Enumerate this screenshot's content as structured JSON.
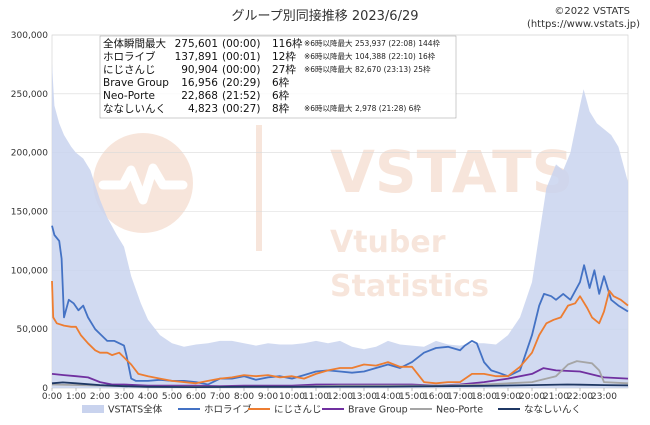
{
  "header": {
    "title": "グループ別同接推移 2023/6/29",
    "copyright": "©2022 VSTATS",
    "url": "(https://www.vstats.jp)"
  },
  "watermark": {
    "brand": "VSTATS",
    "line1": "Vtuber",
    "line2": "Statistics"
  },
  "stats_box": [
    {
      "label": "全体瞬間最大",
      "value": "275,601",
      "time": "(00:00)",
      "slots": "116枠",
      "note": "※6時以降最大 253,937 (22:08) 144枠"
    },
    {
      "label": "ホロライブ",
      "value": "137,891",
      "time": "(00:01)",
      "slots": "12枠",
      "note": "※6時以降最大 104,388 (22:10) 16枠"
    },
    {
      "label": "にじさんじ",
      "value": "90,904",
      "time": "(00:00)",
      "slots": "27枠",
      "note": "※6時以降最大 82,670 (23:13) 25枠"
    },
    {
      "label": "Brave Group",
      "value": "16,956",
      "time": "(20:29)",
      "slots": "6枠",
      "note": ""
    },
    {
      "label": "Neo-Porte",
      "value": "22,868",
      "time": "(21:52)",
      "slots": "6枠",
      "note": ""
    },
    {
      "label": "ななしいんく",
      "value": "4,823",
      "time": "(00:27)",
      "slots": "8枠",
      "note": "※6時以降最大 2,978 (21:28) 6枠"
    }
  ],
  "chart_data": {
    "type": "area",
    "x_unit": "hours since 0:00",
    "xlim": [
      0,
      24
    ],
    "ylim": [
      0,
      300000
    ],
    "y_ticks": [
      "0",
      "50,000",
      "100,000",
      "150,000",
      "200,000",
      "250,000",
      "300,000"
    ],
    "x_ticks": [
      "0:00",
      "1:00",
      "2:00",
      "3:00",
      "4:00",
      "5:00",
      "6:00",
      "7:00",
      "8:00",
      "9:00",
      "10:00",
      "11:00",
      "12:00",
      "13:00",
      "14:00",
      "15:00",
      "16:00",
      "17:00",
      "18:00",
      "19:00",
      "20:00",
      "21:00",
      "22:00",
      "23:00"
    ],
    "grid": true,
    "legend_position": "bottom",
    "series": [
      {
        "name": "VSTATS全体",
        "color": "#c9d3ee",
        "kind": "area",
        "points": [
          [
            0,
            275600
          ],
          [
            0.1,
            240000
          ],
          [
            0.3,
            225000
          ],
          [
            0.5,
            215000
          ],
          [
            0.8,
            205000
          ],
          [
            1.0,
            200000
          ],
          [
            1.3,
            195000
          ],
          [
            1.6,
            185000
          ],
          [
            2.0,
            160000
          ],
          [
            2.3,
            145000
          ],
          [
            2.7,
            130000
          ],
          [
            3.0,
            120000
          ],
          [
            3.3,
            95000
          ],
          [
            3.7,
            72000
          ],
          [
            4.0,
            58000
          ],
          [
            4.5,
            45000
          ],
          [
            5.0,
            38000
          ],
          [
            5.5,
            35000
          ],
          [
            6.0,
            37000
          ],
          [
            6.5,
            38000
          ],
          [
            7.0,
            40000
          ],
          [
            7.5,
            40000
          ],
          [
            8.0,
            38000
          ],
          [
            8.5,
            36000
          ],
          [
            9.0,
            38000
          ],
          [
            9.5,
            37000
          ],
          [
            10.0,
            37000
          ],
          [
            10.5,
            38000
          ],
          [
            11.0,
            40000
          ],
          [
            11.5,
            38000
          ],
          [
            12.0,
            40000
          ],
          [
            12.5,
            35000
          ],
          [
            13.0,
            33000
          ],
          [
            13.5,
            35000
          ],
          [
            14.0,
            40000
          ],
          [
            14.5,
            37000
          ],
          [
            15.0,
            36000
          ],
          [
            15.5,
            35000
          ],
          [
            16.0,
            40000
          ],
          [
            16.5,
            37000
          ],
          [
            17.0,
            36000
          ],
          [
            17.5,
            38000
          ],
          [
            18.0,
            38000
          ],
          [
            18.5,
            37000
          ],
          [
            19.0,
            45000
          ],
          [
            19.5,
            60000
          ],
          [
            20.0,
            90000
          ],
          [
            20.3,
            130000
          ],
          [
            20.6,
            170000
          ],
          [
            21.0,
            190000
          ],
          [
            21.3,
            185000
          ],
          [
            21.6,
            200000
          ],
          [
            22.0,
            240000
          ],
          [
            22.15,
            253900
          ],
          [
            22.4,
            235000
          ],
          [
            22.7,
            225000
          ],
          [
            23.0,
            220000
          ],
          [
            23.3,
            215000
          ],
          [
            23.6,
            205000
          ],
          [
            24,
            175000
          ]
        ]
      },
      {
        "name": "ホロライブ",
        "color": "#4472c4",
        "kind": "line",
        "points": [
          [
            0,
            137900
          ],
          [
            0.1,
            130000
          ],
          [
            0.3,
            125000
          ],
          [
            0.4,
            110000
          ],
          [
            0.5,
            60000
          ],
          [
            0.7,
            75000
          ],
          [
            0.9,
            72000
          ],
          [
            1.1,
            66000
          ],
          [
            1.3,
            70000
          ],
          [
            1.5,
            60000
          ],
          [
            1.8,
            50000
          ],
          [
            2.0,
            46000
          ],
          [
            2.3,
            40000
          ],
          [
            2.6,
            40000
          ],
          [
            3.0,
            36000
          ],
          [
            3.1,
            28000
          ],
          [
            3.3,
            8000
          ],
          [
            3.5,
            6000
          ],
          [
            4.0,
            6000
          ],
          [
            4.5,
            7000
          ],
          [
            5.0,
            6000
          ],
          [
            5.5,
            6000
          ],
          [
            6.0,
            5000
          ],
          [
            6.5,
            3000
          ],
          [
            7.0,
            8000
          ],
          [
            7.5,
            8000
          ],
          [
            8.0,
            10000
          ],
          [
            8.5,
            7000
          ],
          [
            9.0,
            9000
          ],
          [
            9.5,
            10000
          ],
          [
            10.0,
            8000
          ],
          [
            10.5,
            11000
          ],
          [
            11.0,
            14000
          ],
          [
            11.5,
            15000
          ],
          [
            12.0,
            14000
          ],
          [
            12.5,
            13000
          ],
          [
            13.0,
            14000
          ],
          [
            13.5,
            17000
          ],
          [
            14.0,
            20000
          ],
          [
            14.5,
            17000
          ],
          [
            15.0,
            22000
          ],
          [
            15.5,
            30000
          ],
          [
            16.0,
            34000
          ],
          [
            16.5,
            35000
          ],
          [
            17.0,
            32000
          ],
          [
            17.2,
            36000
          ],
          [
            17.5,
            40000
          ],
          [
            17.7,
            38000
          ],
          [
            18.0,
            22000
          ],
          [
            18.3,
            15000
          ],
          [
            18.6,
            13000
          ],
          [
            19.0,
            10000
          ],
          [
            19.5,
            15000
          ],
          [
            20.0,
            45000
          ],
          [
            20.3,
            70000
          ],
          [
            20.5,
            80000
          ],
          [
            20.8,
            78000
          ],
          [
            21.0,
            75000
          ],
          [
            21.3,
            80000
          ],
          [
            21.6,
            75000
          ],
          [
            22.0,
            90000
          ],
          [
            22.17,
            104400
          ],
          [
            22.4,
            85000
          ],
          [
            22.6,
            100000
          ],
          [
            22.8,
            80000
          ],
          [
            23.0,
            95000
          ],
          [
            23.3,
            75000
          ],
          [
            23.6,
            70000
          ],
          [
            24,
            65000
          ]
        ]
      },
      {
        "name": "にじさんじ",
        "color": "#ed7d31",
        "kind": "line",
        "points": [
          [
            0,
            90900
          ],
          [
            0.05,
            60000
          ],
          [
            0.2,
            55000
          ],
          [
            0.5,
            53000
          ],
          [
            0.8,
            52000
          ],
          [
            1.0,
            52000
          ],
          [
            1.2,
            45000
          ],
          [
            1.5,
            38000
          ],
          [
            1.8,
            32000
          ],
          [
            2.0,
            30000
          ],
          [
            2.3,
            30000
          ],
          [
            2.5,
            28000
          ],
          [
            2.8,
            30000
          ],
          [
            3.0,
            26000
          ],
          [
            3.3,
            20000
          ],
          [
            3.6,
            12000
          ],
          [
            4.0,
            10000
          ],
          [
            4.5,
            8000
          ],
          [
            5.0,
            6000
          ],
          [
            5.5,
            5000
          ],
          [
            6.0,
            4000
          ],
          [
            6.5,
            6000
          ],
          [
            7.0,
            8000
          ],
          [
            7.5,
            9000
          ],
          [
            8.0,
            11000
          ],
          [
            8.5,
            10000
          ],
          [
            9.0,
            11000
          ],
          [
            9.5,
            9000
          ],
          [
            10.0,
            10000
          ],
          [
            10.5,
            8000
          ],
          [
            11.0,
            12000
          ],
          [
            11.5,
            15000
          ],
          [
            12.0,
            17000
          ],
          [
            12.5,
            17000
          ],
          [
            13.0,
            20000
          ],
          [
            13.5,
            19000
          ],
          [
            14.0,
            22000
          ],
          [
            14.5,
            18000
          ],
          [
            15.0,
            18000
          ],
          [
            15.5,
            5000
          ],
          [
            16.0,
            4000
          ],
          [
            16.5,
            5000
          ],
          [
            17.0,
            5000
          ],
          [
            17.5,
            12000
          ],
          [
            18.0,
            12000
          ],
          [
            18.5,
            10000
          ],
          [
            19.0,
            10000
          ],
          [
            19.5,
            18000
          ],
          [
            20.0,
            30000
          ],
          [
            20.3,
            45000
          ],
          [
            20.6,
            55000
          ],
          [
            20.9,
            58000
          ],
          [
            21.2,
            60000
          ],
          [
            21.5,
            70000
          ],
          [
            21.8,
            72000
          ],
          [
            22.0,
            78000
          ],
          [
            22.3,
            68000
          ],
          [
            22.5,
            60000
          ],
          [
            22.8,
            55000
          ],
          [
            23.0,
            65000
          ],
          [
            23.22,
            82700
          ],
          [
            23.4,
            78000
          ],
          [
            23.7,
            75000
          ],
          [
            24,
            70000
          ]
        ]
      },
      {
        "name": "Brave Group",
        "color": "#7030a0",
        "kind": "line",
        "points": [
          [
            0,
            12000
          ],
          [
            0.5,
            11000
          ],
          [
            1.0,
            10000
          ],
          [
            1.5,
            9000
          ],
          [
            2.0,
            5000
          ],
          [
            2.5,
            3000
          ],
          [
            3.0,
            3000
          ],
          [
            4.0,
            2000
          ],
          [
            5.0,
            2000
          ],
          [
            6.0,
            2000
          ],
          [
            7.0,
            1500
          ],
          [
            8.0,
            2000
          ],
          [
            9.0,
            2000
          ],
          [
            10.0,
            2000
          ],
          [
            11.0,
            3000
          ],
          [
            12.0,
            3000
          ],
          [
            13.0,
            3000
          ],
          [
            14.0,
            3000
          ],
          [
            15.0,
            3000
          ],
          [
            16.0,
            2000
          ],
          [
            17.0,
            3000
          ],
          [
            18.0,
            5000
          ],
          [
            19.0,
            8000
          ],
          [
            20.0,
            12000
          ],
          [
            20.48,
            16900
          ],
          [
            21.0,
            15000
          ],
          [
            22.0,
            14000
          ],
          [
            23.0,
            9000
          ],
          [
            24,
            8000
          ]
        ]
      },
      {
        "name": "Neo-Porte",
        "color": "#a5a5a5",
        "kind": "line",
        "points": [
          [
            0,
            3000
          ],
          [
            2.0,
            2000
          ],
          [
            4.0,
            1000
          ],
          [
            6.0,
            1000
          ],
          [
            8.0,
            1000
          ],
          [
            10.0,
            1000
          ],
          [
            12.0,
            2000
          ],
          [
            14.0,
            2000
          ],
          [
            16.0,
            2000
          ],
          [
            18.0,
            3000
          ],
          [
            20.0,
            5000
          ],
          [
            21.0,
            10000
          ],
          [
            21.5,
            20000
          ],
          [
            21.87,
            22870
          ],
          [
            22.5,
            21000
          ],
          [
            22.8,
            15000
          ],
          [
            23.0,
            5000
          ],
          [
            24,
            4000
          ]
        ]
      },
      {
        "name": "ななしいんく",
        "color": "#1f3864",
        "kind": "line",
        "points": [
          [
            0,
            4000
          ],
          [
            0.45,
            4800
          ],
          [
            1.0,
            4000
          ],
          [
            2.0,
            2500
          ],
          [
            3.0,
            1500
          ],
          [
            4.0,
            1000
          ],
          [
            6.0,
            800
          ],
          [
            8.0,
            1000
          ],
          [
            10.0,
            1000
          ],
          [
            12.0,
            1200
          ],
          [
            14.0,
            1200
          ],
          [
            16.0,
            1500
          ],
          [
            18.0,
            1800
          ],
          [
            20.0,
            2500
          ],
          [
            21.47,
            2978
          ],
          [
            22.0,
            2800
          ],
          [
            23.0,
            2500
          ],
          [
            24,
            2200
          ]
        ]
      }
    ]
  }
}
